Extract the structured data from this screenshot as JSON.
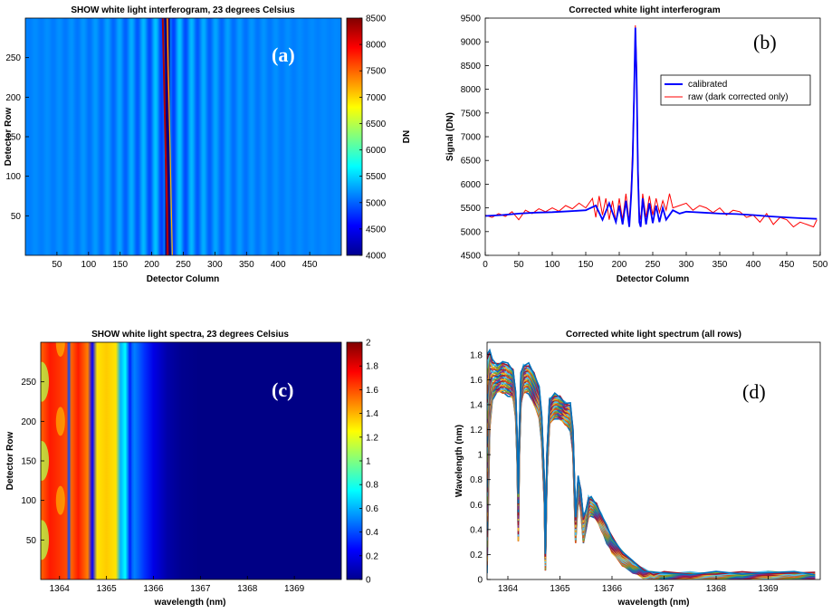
{
  "chart_data": [
    {
      "id": "a",
      "type": "heatmap",
      "title": "SHOW white light interferogram, 23 degrees Celsius",
      "panel_label": "(a)",
      "xlabel": "Detector Column",
      "ylabel": "Detector Row",
      "xlim": [
        0,
        500
      ],
      "ylim": [
        0,
        300
      ],
      "xticks": [
        50,
        100,
        150,
        200,
        250,
        300,
        350,
        400,
        450
      ],
      "yticks": [
        50,
        100,
        150,
        200,
        250
      ],
      "colorbar": {
        "label": "DN",
        "range": [
          4000,
          8500
        ],
        "ticks": [
          4000,
          4500,
          5000,
          5500,
          6000,
          6500,
          7000,
          7500,
          8000,
          8500
        ]
      },
      "background_level": 5150,
      "fringe_center_column": 225,
      "fringe_tilt_columns": 8,
      "colormap": "jet"
    },
    {
      "id": "b",
      "type": "line",
      "title": "Corrected white light interferogram",
      "panel_label": "(b)",
      "xlabel": "Detector Column",
      "ylabel": "Signal (DN)",
      "xlim": [
        0,
        500
      ],
      "ylim": [
        4500,
        9500
      ],
      "xticks": [
        0,
        50,
        100,
        150,
        200,
        250,
        300,
        350,
        400,
        450,
        500
      ],
      "yticks": [
        4500,
        5000,
        5500,
        6000,
        6500,
        7000,
        7500,
        8000,
        8500,
        9000,
        9500
      ],
      "legend": "top-right",
      "series": [
        {
          "name": "calibrated",
          "color": "#0000ff",
          "x": [
            0,
            25,
            50,
            75,
            100,
            125,
            150,
            165,
            175,
            185,
            195,
            200,
            205,
            210,
            215,
            218,
            220,
            222,
            224,
            226,
            228,
            230,
            232,
            235,
            240,
            245,
            250,
            255,
            260,
            265,
            270,
            280,
            290,
            300,
            325,
            350,
            375,
            400,
            425,
            450,
            475,
            495
          ],
          "y": [
            5330,
            5350,
            5380,
            5400,
            5410,
            5430,
            5450,
            5550,
            5250,
            5600,
            5200,
            5550,
            5150,
            5650,
            5100,
            5800,
            6500,
            7800,
            9300,
            8200,
            6200,
            5200,
            5100,
            5700,
            5150,
            5600,
            5180,
            5550,
            5200,
            5500,
            5250,
            5450,
            5380,
            5420,
            5400,
            5380,
            5370,
            5350,
            5320,
            5300,
            5280,
            5270
          ]
        },
        {
          "name": "raw (dark corrected only)",
          "color": "#ff0000",
          "x": [
            0,
            10,
            20,
            30,
            40,
            50,
            60,
            70,
            80,
            90,
            100,
            110,
            120,
            130,
            140,
            150,
            160,
            165,
            170,
            175,
            180,
            185,
            190,
            195,
            200,
            205,
            210,
            215,
            218,
            220,
            222,
            224,
            226,
            228,
            230,
            232,
            235,
            240,
            245,
            250,
            255,
            260,
            265,
            270,
            275,
            280,
            290,
            300,
            310,
            320,
            330,
            340,
            350,
            360,
            370,
            380,
            390,
            400,
            410,
            420,
            430,
            440,
            450,
            460,
            470,
            480,
            490,
            495
          ],
          "y": [
            5350,
            5300,
            5380,
            5320,
            5420,
            5250,
            5450,
            5380,
            5480,
            5420,
            5500,
            5430,
            5550,
            5480,
            5600,
            5500,
            5700,
            5300,
            5750,
            5350,
            5700,
            5250,
            5650,
            5200,
            5700,
            5250,
            5800,
            5200,
            6000,
            6800,
            8000,
            9350,
            8500,
            6500,
            5400,
            5250,
            5800,
            5300,
            5750,
            5350,
            5700,
            5400,
            5650,
            5450,
            5800,
            5500,
            5550,
            5600,
            5450,
            5550,
            5500,
            5400,
            5500,
            5350,
            5450,
            5420,
            5300,
            5350,
            5200,
            5380,
            5150,
            5300,
            5250,
            5100,
            5200,
            5150,
            5100,
            5250
          ]
        }
      ]
    },
    {
      "id": "c",
      "type": "heatmap",
      "title": "SHOW white light spectra, 23 degrees Celsius",
      "panel_label": "(c)",
      "xlabel": "wavelength (nm)",
      "ylabel": "Detector Row",
      "xlim": [
        1363.6,
        1370.0
      ],
      "ylim": [
        0,
        300
      ],
      "xticks": [
        1364,
        1365,
        1366,
        1367,
        1368,
        1369
      ],
      "yticks": [
        50,
        100,
        150,
        200,
        250
      ],
      "colorbar": {
        "range": [
          0,
          2
        ],
        "ticks": [
          0,
          0.2,
          0.4,
          0.6,
          0.8,
          1,
          1.2,
          1.4,
          1.6,
          1.8,
          2
        ]
      },
      "column_profile": {
        "wavelength": [
          1363.6,
          1363.8,
          1364.0,
          1364.15,
          1364.2,
          1364.25,
          1364.4,
          1364.6,
          1364.7,
          1364.8,
          1365.0,
          1365.2,
          1365.3,
          1365.4,
          1365.5,
          1365.55,
          1365.6,
          1365.8,
          1366.0,
          1366.3,
          1366.6,
          1367.0,
          1368.0,
          1370.0
        ],
        "value": [
          1.55,
          1.7,
          1.65,
          1.6,
          0.4,
          1.55,
          1.7,
          1.5,
          0.25,
          1.3,
          1.35,
          1.3,
          0.6,
          0.75,
          0.3,
          0.45,
          0.5,
          0.35,
          0.2,
          0.08,
          0.03,
          0.01,
          0.01,
          0.01
        ]
      },
      "colormap": "jet"
    },
    {
      "id": "d",
      "type": "line",
      "title": "Corrected white light spectrum (all rows)",
      "panel_label": "(d)",
      "xlabel": "wavelength (nm)",
      "ylabel": "Wavelength (nm)",
      "xlim": [
        1363.6,
        1370.0
      ],
      "ylim": [
        0,
        1.9
      ],
      "xticks": [
        1364,
        1365,
        1366,
        1367,
        1368,
        1369
      ],
      "yticks": [
        0,
        0.2,
        0.4,
        0.6,
        0.8,
        1,
        1.2,
        1.4,
        1.6,
        1.8
      ],
      "envelope": {
        "x": [
          1363.6,
          1363.65,
          1363.7,
          1363.8,
          1363.9,
          1364.0,
          1364.1,
          1364.15,
          1364.18,
          1364.2,
          1364.22,
          1364.25,
          1364.3,
          1364.4,
          1364.5,
          1364.6,
          1364.65,
          1364.7,
          1364.72,
          1364.75,
          1364.8,
          1364.9,
          1365.0,
          1365.1,
          1365.2,
          1365.25,
          1365.3,
          1365.35,
          1365.4,
          1365.45,
          1365.5,
          1365.55,
          1365.6,
          1365.7,
          1365.8,
          1365.9,
          1366.0,
          1366.2,
          1366.4,
          1366.6,
          1366.8,
          1367.0,
          1367.5,
          1368.0,
          1368.5,
          1369.0,
          1369.5,
          1369.9
        ],
        "upper": [
          1.8,
          1.85,
          1.75,
          1.72,
          1.75,
          1.72,
          1.68,
          1.5,
          1.1,
          0.7,
          1.2,
          1.65,
          1.72,
          1.72,
          1.65,
          1.55,
          1.3,
          0.8,
          0.2,
          1.0,
          1.45,
          1.48,
          1.46,
          1.42,
          1.4,
          1.2,
          0.5,
          0.82,
          0.72,
          0.5,
          0.55,
          0.66,
          0.65,
          0.6,
          0.52,
          0.42,
          0.34,
          0.22,
          0.14,
          0.08,
          0.05,
          0.05,
          0.05,
          0.05,
          0.05,
          0.06,
          0.05,
          0.05
        ],
        "lower": [
          0.05,
          1.2,
          1.45,
          1.5,
          1.5,
          1.48,
          1.45,
          1.3,
          0.9,
          0.3,
          1.0,
          1.4,
          1.5,
          1.5,
          1.4,
          1.3,
          1.1,
          0.6,
          0.08,
          0.8,
          1.25,
          1.3,
          1.28,
          1.25,
          1.2,
          1.0,
          0.3,
          0.65,
          0.55,
          0.3,
          0.4,
          0.5,
          0.52,
          0.48,
          0.4,
          0.3,
          0.22,
          0.12,
          0.06,
          0.02,
          0.0,
          0.0,
          0.0,
          0.0,
          0.0,
          0.0,
          0.0,
          0.0
        ]
      },
      "series_count": 300,
      "colors": [
        "#0072bd",
        "#d95319",
        "#edb120",
        "#7e2f8e",
        "#77ac30",
        "#4dbeee",
        "#a2142f"
      ]
    }
  ]
}
